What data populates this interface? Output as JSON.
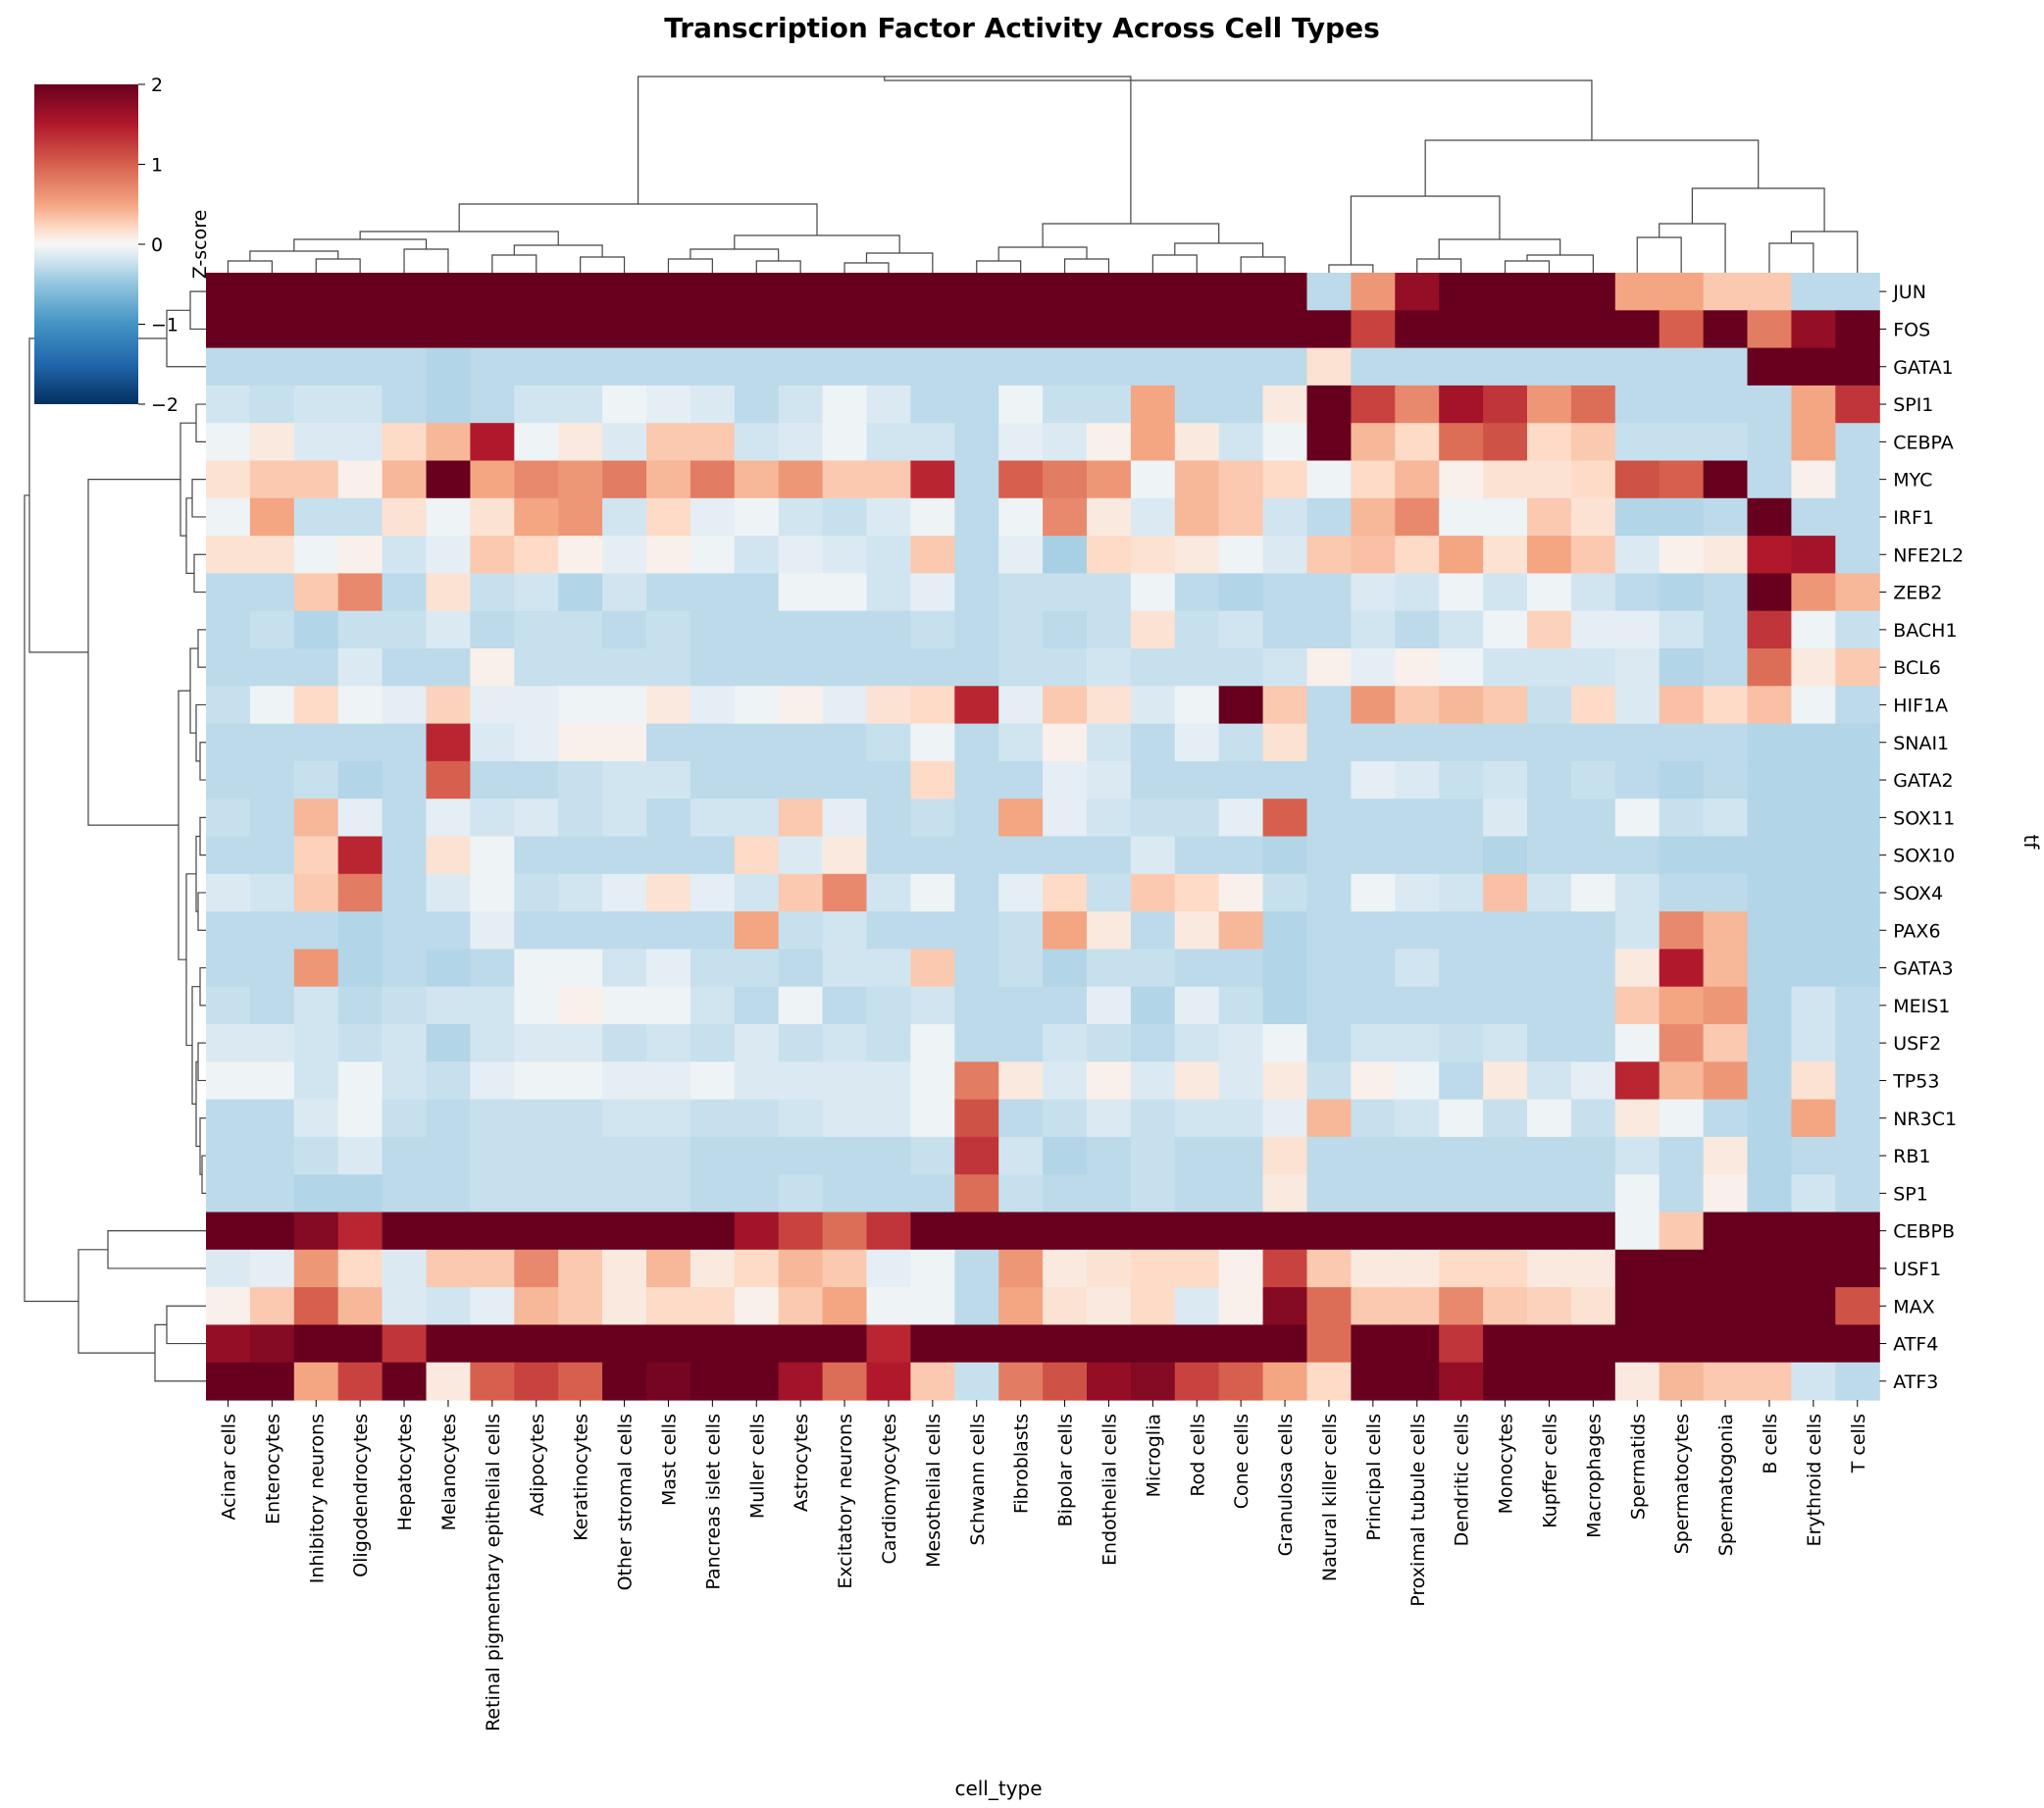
{
  "chart_data": {
    "type": "heatmap",
    "title": "Transcription Factor Activity Across Cell Types",
    "xlabel": "cell_type",
    "ylabel": "tf",
    "colorbar": {
      "label": "Z-score",
      "range": [
        -2,
        2
      ],
      "ticks": [
        "2",
        "1",
        "0",
        "−1",
        "−2"
      ],
      "colormap": "RdBu_r"
    },
    "x": [
      "Acinar cells",
      "Enterocytes",
      "Inhibitory neurons",
      "Oligodendrocytes",
      "Hepatocytes",
      "Melanocytes",
      "Retinal pigmentary epithelial cells",
      "Adipocytes",
      "Keratinocytes",
      "Other stromal cells",
      "Mast cells",
      "Pancreas islet cells",
      "Muller cells",
      "Astrocytes",
      "Excitatory neurons",
      "Cardiomyocytes",
      "Mesothelial cells",
      "Schwann cells",
      "Fibroblasts",
      "Bipolar cells",
      "Endothelial cells",
      "Microglia",
      "Rod cells",
      "Cone cells",
      "Granulosa cells",
      "Natural killer cells",
      "Principal cells",
      "Proximal tubule cells",
      "Dendritic cells",
      "Monocytes",
      "Kupffer cells",
      "Macrophages",
      "Spermatids",
      "Spermatocytes",
      "Spermatogonia",
      "B cells",
      "Erythroid cells",
      "T cells"
    ],
    "y": [
      "JUN",
      "FOS",
      "GATA1",
      "SPI1",
      "CEBPA",
      "MYC",
      "IRF1",
      "NFE2L2",
      "ZEB2",
      "BACH1",
      "BCL6",
      "HIF1A",
      "SNAI1",
      "GATA2",
      "SOX11",
      "SOX10",
      "SOX4",
      "PAX6",
      "GATA3",
      "MEIS1",
      "USF2",
      "TP53",
      "NR3C1",
      "RB1",
      "SP1",
      "CEBPB",
      "USF1",
      "MAX",
      "ATF4",
      "ATF3"
    ],
    "values": [
      [
        2.5,
        2.5,
        2.5,
        2.5,
        2.5,
        2.5,
        2.5,
        2.5,
        2.5,
        2.5,
        2.5,
        2.5,
        2.5,
        2.5,
        2.5,
        2.5,
        2.5,
        2.5,
        2.5,
        2.5,
        2.5,
        2.5,
        2.5,
        2.5,
        2.5,
        -0.3,
        0.6,
        1.7,
        2.5,
        2.5,
        2.5,
        2.5,
        0.5,
        0.5,
        0.3,
        0.3,
        -0.3,
        -0.3
      ],
      [
        2.5,
        2.5,
        2.5,
        2.5,
        2.5,
        2.5,
        2.5,
        2.5,
        2.5,
        2.5,
        2.5,
        2.5,
        2.5,
        2.5,
        2.5,
        2.5,
        2.5,
        2.5,
        2.5,
        2.5,
        2.5,
        2.5,
        2.5,
        2.5,
        2.5,
        2.5,
        1.2,
        2.5,
        2.5,
        2.5,
        2.5,
        2.5,
        2.5,
        1.0,
        2.5,
        0.8,
        1.7,
        2.5
      ],
      [
        -0.3,
        -0.3,
        -0.3,
        -0.3,
        -0.3,
        -0.35,
        -0.3,
        -0.3,
        -0.3,
        -0.3,
        -0.3,
        -0.3,
        -0.3,
        -0.3,
        -0.3,
        -0.3,
        -0.3,
        -0.3,
        -0.3,
        -0.3,
        -0.3,
        -0.3,
        -0.3,
        -0.3,
        -0.3,
        0.15,
        -0.3,
        -0.3,
        -0.3,
        -0.3,
        -0.3,
        -0.3,
        -0.3,
        -0.3,
        -0.3,
        2.5,
        2.5,
        2.5
      ],
      [
        -0.2,
        -0.25,
        -0.2,
        -0.2,
        -0.3,
        -0.35,
        -0.3,
        -0.2,
        -0.2,
        -0.05,
        -0.1,
        -0.15,
        -0.3,
        -0.2,
        -0.05,
        -0.15,
        -0.3,
        -0.3,
        -0.05,
        -0.25,
        -0.25,
        0.5,
        -0.3,
        -0.3,
        0.1,
        2.5,
        1.2,
        0.7,
        1.6,
        1.3,
        0.6,
        0.9,
        -0.3,
        -0.3,
        -0.3,
        -0.3,
        0.5,
        1.3
      ],
      [
        -0.05,
        0.1,
        -0.15,
        -0.15,
        0.2,
        0.4,
        1.5,
        -0.05,
        0.1,
        -0.15,
        0.3,
        0.3,
        -0.2,
        -0.15,
        -0.05,
        -0.2,
        -0.2,
        -0.3,
        -0.1,
        -0.15,
        0.05,
        0.5,
        0.1,
        -0.2,
        -0.05,
        2.5,
        0.4,
        0.2,
        0.9,
        1.1,
        0.2,
        0.3,
        -0.25,
        -0.25,
        -0.25,
        -0.3,
        0.5,
        -0.3
      ],
      [
        0.15,
        0.3,
        0.3,
        0.05,
        0.4,
        2.1,
        0.5,
        0.7,
        0.6,
        0.8,
        0.4,
        0.8,
        0.4,
        0.6,
        0.3,
        0.3,
        1.4,
        -0.3,
        1.0,
        0.8,
        0.6,
        -0.05,
        0.4,
        0.3,
        0.2,
        -0.05,
        0.2,
        0.4,
        0.05,
        0.15,
        0.15,
        0.2,
        1.1,
        1.0,
        2.1,
        -0.3,
        0.05,
        -0.3
      ],
      [
        -0.05,
        0.5,
        -0.25,
        -0.25,
        0.15,
        -0.05,
        0.15,
        0.5,
        0.6,
        -0.2,
        0.2,
        -0.1,
        -0.05,
        -0.2,
        -0.25,
        -0.15,
        -0.05,
        -0.3,
        -0.05,
        0.7,
        0.1,
        -0.15,
        0.4,
        0.3,
        -0.2,
        -0.3,
        0.4,
        0.7,
        -0.05,
        -0.05,
        0.3,
        0.15,
        -0.35,
        -0.35,
        -0.3,
        2.5,
        -0.3,
        -0.3
      ],
      [
        0.15,
        0.15,
        -0.05,
        0.05,
        -0.2,
        -0.1,
        0.3,
        0.2,
        0.05,
        -0.1,
        0.05,
        -0.05,
        -0.2,
        -0.1,
        -0.15,
        -0.2,
        0.3,
        -0.3,
        -0.1,
        -0.4,
        0.2,
        0.15,
        0.1,
        -0.05,
        -0.15,
        0.3,
        0.35,
        0.2,
        0.5,
        0.15,
        0.5,
        0.3,
        -0.15,
        0.05,
        0.1,
        1.5,
        1.6,
        -0.3
      ],
      [
        -0.3,
        -0.3,
        0.3,
        0.7,
        -0.3,
        0.15,
        -0.25,
        -0.2,
        -0.35,
        -0.2,
        -0.3,
        -0.3,
        -0.3,
        -0.05,
        -0.05,
        -0.2,
        -0.1,
        -0.3,
        -0.25,
        -0.25,
        -0.25,
        -0.05,
        -0.3,
        -0.35,
        -0.3,
        -0.3,
        -0.15,
        -0.2,
        -0.05,
        -0.2,
        -0.05,
        -0.2,
        -0.3,
        -0.35,
        -0.3,
        2.2,
        0.6,
        0.4
      ],
      [
        -0.3,
        -0.25,
        -0.35,
        -0.25,
        -0.25,
        -0.15,
        -0.3,
        -0.25,
        -0.25,
        -0.3,
        -0.25,
        -0.3,
        -0.3,
        -0.3,
        -0.3,
        -0.3,
        -0.25,
        -0.3,
        -0.25,
        -0.3,
        -0.25,
        0.15,
        -0.25,
        -0.2,
        -0.3,
        -0.3,
        -0.2,
        -0.3,
        -0.2,
        -0.05,
        0.25,
        -0.1,
        -0.1,
        -0.2,
        -0.3,
        1.3,
        -0.05,
        -0.25
      ],
      [
        -0.3,
        -0.3,
        -0.3,
        -0.15,
        -0.3,
        -0.3,
        0.05,
        -0.25,
        -0.25,
        -0.25,
        -0.25,
        -0.3,
        -0.3,
        -0.3,
        -0.3,
        -0.3,
        -0.3,
        -0.3,
        -0.25,
        -0.25,
        -0.2,
        -0.25,
        -0.25,
        -0.25,
        -0.2,
        0.05,
        -0.1,
        0.05,
        -0.05,
        -0.2,
        -0.2,
        -0.2,
        -0.15,
        -0.35,
        -0.3,
        0.9,
        0.1,
        0.3
      ],
      [
        -0.25,
        -0.05,
        0.2,
        -0.05,
        -0.1,
        0.25,
        -0.1,
        -0.1,
        -0.05,
        -0.05,
        0.1,
        -0.1,
        -0.05,
        0.05,
        -0.1,
        0.15,
        0.2,
        1.4,
        -0.1,
        0.3,
        0.15,
        -0.15,
        -0.05,
        2.5,
        0.3,
        -0.3,
        0.6,
        0.3,
        0.4,
        0.3,
        -0.25,
        0.2,
        -0.15,
        0.35,
        0.2,
        0.35,
        -0.05,
        -0.3
      ],
      [
        -0.3,
        -0.3,
        -0.3,
        -0.3,
        -0.3,
        1.4,
        -0.15,
        -0.1,
        0.05,
        0.05,
        -0.3,
        -0.3,
        -0.3,
        -0.3,
        -0.3,
        -0.25,
        -0.05,
        -0.3,
        -0.2,
        0.05,
        -0.2,
        -0.3,
        -0.1,
        -0.25,
        0.15,
        -0.3,
        -0.3,
        -0.3,
        -0.3,
        -0.3,
        -0.3,
        -0.3,
        -0.3,
        -0.3,
        -0.3,
        -0.35,
        -0.35,
        -0.35
      ],
      [
        -0.3,
        -0.3,
        -0.25,
        -0.35,
        -0.3,
        1.0,
        -0.3,
        -0.3,
        -0.25,
        -0.2,
        -0.2,
        -0.3,
        -0.3,
        -0.3,
        -0.3,
        -0.3,
        0.2,
        -0.3,
        -0.3,
        -0.1,
        -0.15,
        -0.3,
        -0.3,
        -0.3,
        -0.3,
        -0.3,
        -0.1,
        -0.15,
        -0.25,
        -0.2,
        -0.3,
        -0.25,
        -0.3,
        -0.35,
        -0.3,
        -0.35,
        -0.35,
        -0.35
      ],
      [
        -0.25,
        -0.3,
        0.4,
        -0.1,
        -0.3,
        -0.1,
        -0.2,
        -0.15,
        -0.25,
        -0.2,
        -0.3,
        -0.2,
        -0.2,
        0.3,
        -0.1,
        -0.3,
        -0.25,
        -0.3,
        0.5,
        -0.1,
        -0.2,
        -0.25,
        -0.25,
        -0.1,
        1.0,
        -0.3,
        -0.3,
        -0.3,
        -0.3,
        -0.15,
        -0.3,
        -0.3,
        -0.05,
        -0.25,
        -0.2,
        -0.35,
        -0.35,
        -0.35
      ],
      [
        -0.3,
        -0.3,
        0.25,
        1.4,
        -0.3,
        0.15,
        -0.05,
        -0.3,
        -0.3,
        -0.3,
        -0.3,
        -0.3,
        0.2,
        -0.15,
        0.1,
        -0.3,
        -0.3,
        -0.3,
        -0.3,
        -0.3,
        -0.3,
        -0.15,
        -0.3,
        -0.3,
        -0.35,
        -0.3,
        -0.3,
        -0.3,
        -0.3,
        -0.35,
        -0.3,
        -0.3,
        -0.3,
        -0.35,
        -0.35,
        -0.35,
        -0.35,
        -0.35
      ],
      [
        -0.15,
        -0.2,
        0.3,
        0.8,
        -0.3,
        -0.15,
        -0.05,
        -0.25,
        -0.2,
        -0.1,
        0.15,
        -0.1,
        -0.2,
        0.3,
        0.7,
        -0.2,
        -0.05,
        -0.3,
        -0.1,
        0.2,
        -0.25,
        0.3,
        0.2,
        0.05,
        -0.25,
        -0.3,
        -0.05,
        -0.15,
        -0.2,
        0.35,
        -0.2,
        -0.05,
        -0.2,
        -0.3,
        -0.3,
        -0.35,
        -0.35,
        -0.35
      ],
      [
        -0.3,
        -0.3,
        -0.3,
        -0.35,
        -0.3,
        -0.3,
        -0.1,
        -0.3,
        -0.3,
        -0.3,
        -0.3,
        -0.3,
        0.5,
        -0.25,
        -0.2,
        -0.3,
        -0.3,
        -0.3,
        -0.25,
        0.5,
        0.1,
        -0.3,
        0.1,
        0.4,
        -0.35,
        -0.3,
        -0.3,
        -0.3,
        -0.3,
        -0.3,
        -0.3,
        -0.3,
        -0.2,
        0.7,
        0.4,
        -0.35,
        -0.35,
        -0.35
      ],
      [
        -0.3,
        -0.3,
        0.6,
        -0.35,
        -0.3,
        -0.35,
        -0.3,
        -0.05,
        -0.05,
        -0.2,
        -0.1,
        -0.25,
        -0.25,
        -0.3,
        -0.2,
        -0.2,
        0.3,
        -0.3,
        -0.25,
        -0.35,
        -0.25,
        -0.25,
        -0.3,
        -0.3,
        -0.35,
        -0.3,
        -0.3,
        -0.2,
        -0.3,
        -0.3,
        -0.3,
        -0.3,
        0.1,
        1.5,
        0.4,
        -0.35,
        -0.35,
        -0.35
      ],
      [
        -0.25,
        -0.3,
        -0.2,
        -0.3,
        -0.25,
        -0.2,
        -0.2,
        -0.05,
        0.05,
        -0.05,
        -0.05,
        -0.2,
        -0.3,
        -0.05,
        -0.3,
        -0.25,
        -0.2,
        -0.3,
        -0.3,
        -0.3,
        -0.1,
        -0.35,
        -0.1,
        -0.25,
        -0.35,
        -0.3,
        -0.3,
        -0.3,
        -0.3,
        -0.3,
        -0.3,
        -0.3,
        0.3,
        0.5,
        0.6,
        -0.35,
        -0.2,
        -0.3
      ],
      [
        -0.15,
        -0.15,
        -0.2,
        -0.25,
        -0.2,
        -0.35,
        -0.2,
        -0.15,
        -0.15,
        -0.25,
        -0.2,
        -0.25,
        -0.15,
        -0.25,
        -0.2,
        -0.25,
        -0.05,
        -0.3,
        -0.3,
        -0.2,
        -0.25,
        -0.3,
        -0.2,
        -0.15,
        -0.05,
        -0.3,
        -0.2,
        -0.2,
        -0.25,
        -0.2,
        -0.3,
        -0.3,
        -0.05,
        0.7,
        0.3,
        -0.35,
        -0.2,
        -0.3
      ],
      [
        -0.05,
        -0.05,
        -0.2,
        -0.05,
        -0.2,
        -0.25,
        -0.1,
        -0.05,
        -0.05,
        -0.1,
        -0.1,
        -0.05,
        -0.15,
        -0.15,
        -0.15,
        -0.15,
        -0.05,
        0.8,
        0.1,
        -0.15,
        0.05,
        -0.15,
        0.1,
        -0.15,
        0.1,
        -0.25,
        0.05,
        -0.05,
        -0.3,
        0.1,
        -0.2,
        -0.1,
        1.4,
        0.4,
        0.6,
        -0.35,
        0.15,
        -0.3
      ],
      [
        -0.3,
        -0.3,
        -0.15,
        -0.05,
        -0.25,
        -0.3,
        -0.25,
        -0.25,
        -0.25,
        -0.2,
        -0.2,
        -0.25,
        -0.25,
        -0.2,
        -0.15,
        -0.15,
        -0.05,
        1.1,
        -0.3,
        -0.25,
        -0.15,
        -0.25,
        -0.2,
        -0.2,
        -0.1,
        0.4,
        -0.25,
        -0.2,
        -0.05,
        -0.25,
        -0.05,
        -0.25,
        0.1,
        -0.05,
        -0.3,
        -0.35,
        0.5,
        -0.3
      ],
      [
        -0.3,
        -0.3,
        -0.25,
        -0.15,
        -0.3,
        -0.3,
        -0.25,
        -0.25,
        -0.25,
        -0.25,
        -0.25,
        -0.3,
        -0.3,
        -0.3,
        -0.3,
        -0.3,
        -0.25,
        1.3,
        -0.2,
        -0.35,
        -0.3,
        -0.25,
        -0.3,
        -0.3,
        0.15,
        -0.3,
        -0.3,
        -0.3,
        -0.3,
        -0.3,
        -0.3,
        -0.3,
        -0.2,
        -0.3,
        0.1,
        -0.35,
        -0.3,
        -0.3
      ],
      [
        -0.3,
        -0.3,
        -0.35,
        -0.35,
        -0.3,
        -0.3,
        -0.25,
        -0.25,
        -0.25,
        -0.25,
        -0.25,
        -0.3,
        -0.3,
        -0.25,
        -0.3,
        -0.3,
        -0.3,
        0.9,
        -0.25,
        -0.3,
        -0.3,
        -0.25,
        -0.3,
        -0.3,
        0.1,
        -0.3,
        -0.3,
        -0.3,
        -0.3,
        -0.3,
        -0.3,
        -0.3,
        -0.05,
        -0.3,
        0.05,
        -0.35,
        -0.2,
        -0.3
      ],
      [
        2.5,
        2.5,
        1.8,
        1.4,
        2.5,
        2.5,
        2.5,
        2.5,
        2.5,
        2.5,
        2.5,
        2.5,
        1.6,
        1.2,
        0.9,
        1.3,
        2.0,
        2.5,
        2.5,
        2.5,
        2.5,
        2.5,
        2.5,
        2.5,
        2.5,
        2.5,
        2.5,
        2.5,
        2.5,
        2.5,
        2.5,
        2.5,
        -0.05,
        0.3,
        2.5,
        2.5,
        2.5,
        2.5
      ],
      [
        -0.15,
        -0.1,
        0.6,
        0.2,
        -0.15,
        0.3,
        0.3,
        0.7,
        0.3,
        0.1,
        0.4,
        0.1,
        0.2,
        0.4,
        0.3,
        -0.1,
        -0.05,
        -0.3,
        0.6,
        0.1,
        0.15,
        0.2,
        0.2,
        0.05,
        1.2,
        0.3,
        0.1,
        0.1,
        0.2,
        0.2,
        0.1,
        0.1,
        2.5,
        2.5,
        2.5,
        2.5,
        2.5,
        2.5
      ],
      [
        0.05,
        0.3,
        1.0,
        0.4,
        -0.15,
        -0.2,
        -0.1,
        0.4,
        0.3,
        0.1,
        0.2,
        0.2,
        0.05,
        0.3,
        0.5,
        -0.05,
        -0.05,
        -0.3,
        0.5,
        0.15,
        0.1,
        0.2,
        -0.15,
        0.05,
        1.8,
        0.9,
        0.3,
        0.3,
        0.7,
        0.3,
        0.25,
        0.15,
        2.5,
        2.5,
        2.5,
        2.3,
        2.4,
        1.1
      ],
      [
        1.7,
        1.8,
        2.5,
        2.5,
        1.3,
        2.5,
        2.5,
        2.5,
        2.5,
        2.3,
        2.4,
        2.5,
        2.5,
        2.5,
        2.5,
        1.4,
        2.5,
        2.5,
        2.5,
        2.5,
        2.5,
        2.5,
        2.5,
        2.5,
        2.5,
        0.9,
        2.5,
        2.5,
        1.3,
        2.5,
        2.5,
        2.5,
        2.5,
        2.5,
        2.5,
        2.5,
        2.5,
        2.5
      ],
      [
        2.5,
        2.5,
        0.5,
        1.2,
        2.5,
        0.1,
        1.0,
        1.2,
        1.0,
        2.3,
        1.9,
        2.4,
        2.2,
        1.6,
        0.9,
        1.5,
        0.3,
        -0.25,
        0.8,
        1.1,
        1.7,
        1.8,
        1.2,
        1.0,
        0.5,
        0.2,
        2.5,
        2.2,
        1.7,
        2.5,
        2.5,
        2.2,
        0.1,
        0.4,
        0.3,
        0.3,
        -0.2,
        -0.3
      ]
    ]
  }
}
